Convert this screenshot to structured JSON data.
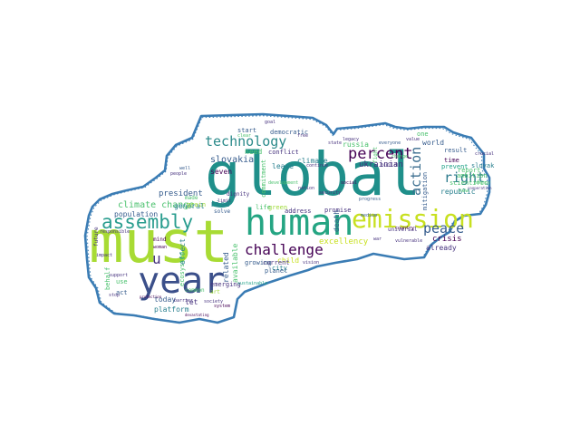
{
  "colors": {
    "background": "#ffffff",
    "outline": "#3a7cb4",
    "palette": [
      "#440154",
      "#46327e",
      "#365c8d",
      "#277f8e",
      "#1fa187",
      "#4ac16d",
      "#a0da39",
      "#c8e020"
    ]
  },
  "words": {
    "global": "global",
    "must": "must",
    "year": "year",
    "human": "human",
    "emission": "emission",
    "assembly": "assembly",
    "technology": "technology",
    "challenge": "challenge",
    "percent": "percent",
    "peace": "peace",
    "right": "right",
    "action": "action",
    "climate_change": "climate change",
    "slovakia": "slovakia",
    "u": "u",
    "seven": "seven",
    "president": "president",
    "general": "general",
    "population": "population",
    "rise": "rise",
    "excellency": "excellency",
    "child": "child",
    "ukrainian": "ukrainian",
    "crisis": "crisis",
    "already": "already",
    "republic": "republic",
    "world": "world",
    "russia": "russia",
    "climate": "climate",
    "leave": "leave",
    "democratic": "democratic",
    "conflict": "conflict",
    "start": "start",
    "need": "need",
    "today": "today",
    "platform": "platform",
    "emerging": "emerging",
    "planet": "planet",
    "current": "current",
    "address": "address",
    "promise": "promise",
    "death": "death",
    "city": "city",
    "growing": "growing",
    "related": "related",
    "available": "available",
    "effect": "effect",
    "ecosystem": "ecosystem",
    "solve": "solve",
    "dignity": "dignity",
    "commitment": "commitment",
    "green": "green",
    "life": "life",
    "let": "let",
    "use": "use",
    "act": "act",
    "behalf": "behalf",
    "made": "made",
    "grain": "grain",
    "mind": "mind",
    "common": "common",
    "woman": "woman",
    "art": "art",
    "result": "result",
    "time": "time",
    "slovak": "slovak",
    "prevent": "prevent",
    "report": "report",
    "ambition": "ambition",
    "scientific": "scientific",
    "one": "one",
    "mitigation": "mitigation",
    "universal": "universal",
    "build": "build",
    "social": "social",
    "medium": "medium",
    "vision": "vision",
    "goal": "goal",
    "legacy": "legacy",
    "everyone": "everyone",
    "clear": "clear",
    "future": "future",
    "well": "well",
    "fight": "fight",
    "continue": "continue",
    "responsible": "responsible",
    "barrier": "barrier",
    "free": "free",
    "progress": "progress",
    "change": "change",
    "value": "value",
    "state": "state",
    "energy": "energy",
    "new": "new",
    "people": "people",
    "security": "security",
    "nation": "nation",
    "support": "support",
    "cooperation": "cooperation",
    "sustainable": "sustainable",
    "development": "development",
    "vulnerable": "vulnerable",
    "country": "country",
    "war": "war",
    "crucial": "crucial",
    "stop": "stop",
    "system": "system",
    "society": "society",
    "devastating": "devastating",
    "impact": "impact",
    "limit": "limit",
    "protection": "protection"
  }
}
